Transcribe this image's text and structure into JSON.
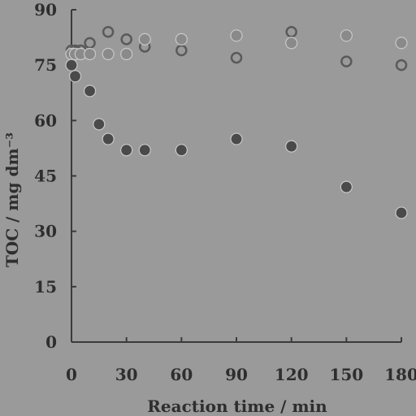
{
  "chart_data": {
    "type": "scatter",
    "title": "",
    "xlabel": "Reaction time / min",
    "ylabel": "TOC / mg dm⁻³",
    "xlim": [
      0,
      180
    ],
    "ylim": [
      0,
      90
    ],
    "xticks": [
      "0",
      "30",
      "60",
      "90",
      "120",
      "150",
      "180"
    ],
    "yticks": [
      "0",
      "15",
      "30",
      "45",
      "60",
      "75",
      "90"
    ],
    "grid": false,
    "legend": "none",
    "series": [
      {
        "marker": "open-circle",
        "color": "#5a5a5a",
        "x": [
          0,
          2,
          5,
          10,
          20,
          30,
          40,
          60,
          90,
          120,
          150,
          180
        ],
        "y": [
          79,
          79,
          79,
          81,
          84,
          82,
          80,
          79,
          77,
          84,
          76,
          75
        ]
      },
      {
        "marker": "light-filled-circle",
        "color": "#8a8a8a",
        "x": [
          0,
          2,
          5,
          10,
          20,
          30,
          40,
          60,
          90,
          120,
          150,
          180
        ],
        "y": [
          78,
          78,
          78,
          78,
          78,
          78,
          82,
          82,
          83,
          81,
          83,
          81
        ]
      },
      {
        "marker": "dark-filled-circle",
        "color": "#4a4a4a",
        "x": [
          0,
          2,
          10,
          15,
          20,
          30,
          40,
          60,
          90,
          120,
          150,
          180
        ],
        "y": [
          75,
          72,
          68,
          59,
          55,
          52,
          52,
          52,
          55,
          53,
          42,
          35
        ]
      }
    ]
  }
}
